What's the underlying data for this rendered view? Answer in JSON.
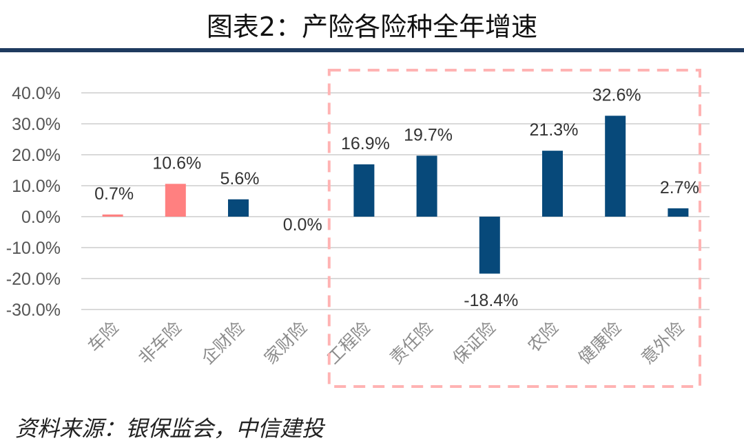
{
  "title": "图表2：产险各险种全年增速",
  "source": "资料来源：银保监会，中信建投",
  "colors": {
    "navy": "#07497a",
    "pink": "#ff8080",
    "box": "#ffb3b3",
    "rule": "#1e3a5f",
    "grid": "#d9d9d9"
  },
  "chart_data": {
    "type": "bar",
    "categories": [
      "车险",
      "非车险",
      "企财险",
      "家财险",
      "工程险",
      "责任险",
      "保证险",
      "农险",
      "健康险",
      "意外险"
    ],
    "values": [
      0.7,
      10.6,
      5.6,
      0.0,
      16.9,
      19.7,
      -18.4,
      21.3,
      32.6,
      2.7
    ],
    "data_labels": [
      "0.7%",
      "10.6%",
      "5.6%",
      "0.0%",
      "16.9%",
      "19.7%",
      "-18.4%",
      "21.3%",
      "32.6%",
      "2.7%"
    ],
    "bar_colors": [
      "pink",
      "pink",
      "navy",
      "navy",
      "navy",
      "navy",
      "navy",
      "navy",
      "navy",
      "navy"
    ],
    "ylim": [
      -30,
      40
    ],
    "yticks": [
      40,
      30,
      20,
      10,
      0,
      -10,
      -20,
      -30
    ],
    "ytick_labels": [
      "40.0%",
      "30.0%",
      "20.0%",
      "10.0%",
      "0.0%",
      "-10.0%",
      "-20.0%",
      "-30.0%"
    ],
    "highlight_range": [
      "工程险",
      "意外险"
    ],
    "grid": true
  }
}
